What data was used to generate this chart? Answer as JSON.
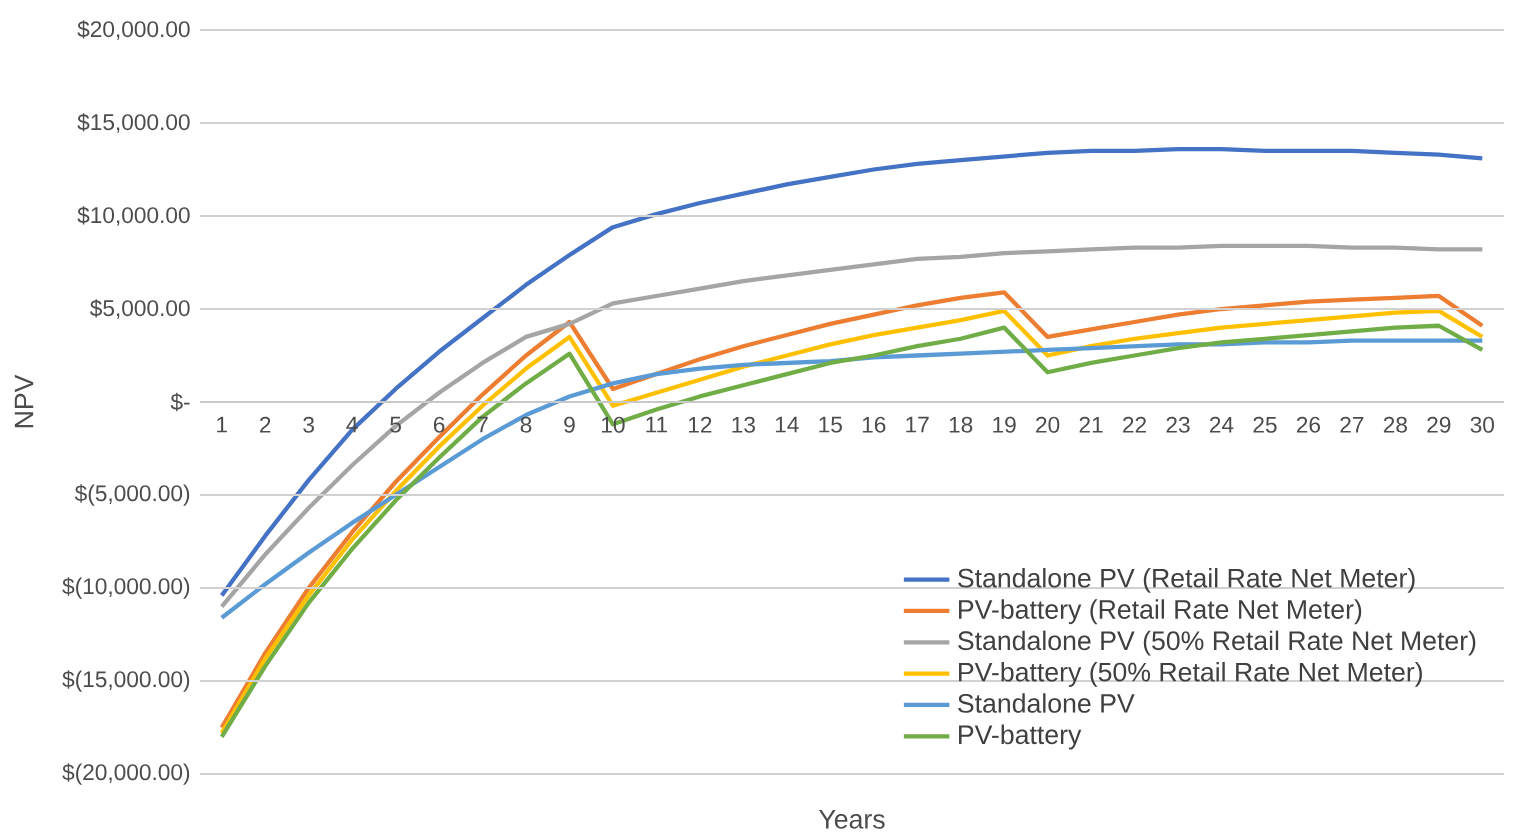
{
  "chart_data": {
    "type": "line",
    "xlabel": "Years",
    "ylabel": "NPV",
    "categories": [
      "1",
      "2",
      "3",
      "4",
      "5",
      "6",
      "7",
      "8",
      "9",
      "10",
      "11",
      "12",
      "13",
      "14",
      "15",
      "16",
      "17",
      "18",
      "19",
      "20",
      "21",
      "22",
      "23",
      "24",
      "25",
      "26",
      "27",
      "28",
      "29",
      "30"
    ],
    "ylim": [
      -20000,
      20000
    ],
    "yticks": [
      {
        "value": -20000,
        "label": "$(20,000.00)"
      },
      {
        "value": -15000,
        "label": "$(15,000.00)"
      },
      {
        "value": -10000,
        "label": "$(10,000.00)"
      },
      {
        "value": -5000,
        "label": "$(5,000.00)"
      },
      {
        "value": 0,
        "label": "$-"
      },
      {
        "value": 5000,
        "label": "$5,000.00"
      },
      {
        "value": 10000,
        "label": "$10,000.00"
      },
      {
        "value": 15000,
        "label": "$15,000.00"
      },
      {
        "value": 20000,
        "label": "$20,000.00"
      }
    ],
    "grid": "y",
    "legend": "bottom right",
    "marker": "none",
    "line_style": "solid",
    "series": [
      {
        "name": "Standalone PV (Retail Rate Net Meter)",
        "color": "#4472c4",
        "values": [
          -10400,
          -7200,
          -4200,
          -1500,
          700,
          2700,
          4500,
          6300,
          7900,
          9400,
          10100,
          10700,
          11200,
          11700,
          12100,
          12500,
          12800,
          13000,
          13200,
          13400,
          13500,
          13500,
          13600,
          13600,
          13500,
          13500,
          13500,
          13400,
          13300,
          13100
        ]
      },
      {
        "name": "PV-battery (Retail Rate Net Meter)",
        "color": "#ed7d31",
        "values": [
          -17500,
          -13500,
          -10000,
          -7000,
          -4300,
          -1900,
          400,
          2500,
          4300,
          700,
          1500,
          2300,
          3000,
          3600,
          4200,
          4700,
          5200,
          5600,
          5900,
          3500,
          3900,
          4300,
          4700,
          5000,
          5200,
          5400,
          5500,
          5600,
          5700,
          4100
        ]
      },
      {
        "name": "Standalone PV (50% Retail Rate Net Meter)",
        "color": "#a5a5a5",
        "values": [
          -11000,
          -8200,
          -5700,
          -3400,
          -1300,
          500,
          2100,
          3500,
          4200,
          5300,
          5700,
          6100,
          6500,
          6800,
          7100,
          7400,
          7700,
          7800,
          8000,
          8100,
          8200,
          8300,
          8300,
          8400,
          8400,
          8400,
          8300,
          8300,
          8200,
          8200
        ]
      },
      {
        "name": "PV-battery (50% Retail Rate Net Meter)",
        "color": "#ffc000",
        "values": [
          -17800,
          -13800,
          -10400,
          -7400,
          -4800,
          -2400,
          -200,
          1800,
          3500,
          -200,
          500,
          1200,
          1900,
          2500,
          3100,
          3600,
          4000,
          4400,
          4900,
          2500,
          3000,
          3400,
          3700,
          4000,
          4200,
          4400,
          4600,
          4800,
          4900,
          3500
        ]
      },
      {
        "name": "Standalone PV",
        "color": "#5b9bd5",
        "values": [
          -11600,
          -9800,
          -8100,
          -6500,
          -5000,
          -3500,
          -2000,
          -700,
          300,
          1000,
          1500,
          1800,
          2000,
          2100,
          2200,
          2400,
          2500,
          2600,
          2700,
          2800,
          2900,
          3000,
          3100,
          3100,
          3200,
          3200,
          3300,
          3300,
          3300,
          3300
        ]
      },
      {
        "name": "PV-battery",
        "color": "#70ad47",
        "values": [
          -18000,
          -14200,
          -10800,
          -7900,
          -5300,
          -3000,
          -800,
          1000,
          2600,
          -1200,
          -400,
          300,
          900,
          1500,
          2100,
          2500,
          3000,
          3400,
          4000,
          1600,
          2100,
          2500,
          2900,
          3200,
          3400,
          3600,
          3800,
          4000,
          4100,
          2800
        ]
      }
    ]
  }
}
